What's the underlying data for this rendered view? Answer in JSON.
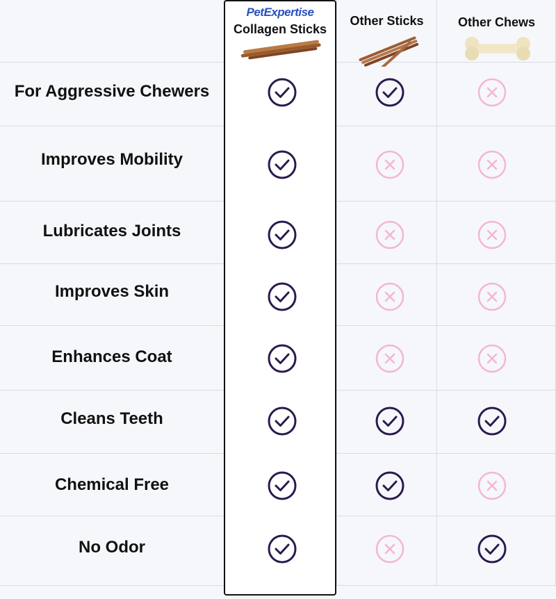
{
  "header": {
    "brand": "PetExpertise",
    "col1_label": "Collagen Sticks",
    "col2_label": "Other Sticks",
    "col3_label": "Other Chews"
  },
  "colors": {
    "check": "#2b1a4f",
    "cross": "#f4b7cf",
    "brand": "#2a52be"
  },
  "rows": [
    {
      "feature": "For Aggressive Chewers",
      "values": [
        true,
        true,
        false
      ]
    },
    {
      "feature": "Improves Mobility",
      "values": [
        true,
        false,
        false
      ]
    },
    {
      "feature": "Lubricates Joints",
      "values": [
        true,
        false,
        false
      ]
    },
    {
      "feature": "Improves Skin",
      "values": [
        true,
        false,
        false
      ]
    },
    {
      "feature": "Enhances Coat",
      "values": [
        true,
        false,
        false
      ]
    },
    {
      "feature": "Cleans Teeth",
      "values": [
        true,
        true,
        true
      ]
    },
    {
      "feature": "Chemical Free",
      "values": [
        true,
        true,
        false
      ]
    },
    {
      "feature": "No Odor",
      "values": [
        true,
        false,
        true
      ]
    }
  ]
}
